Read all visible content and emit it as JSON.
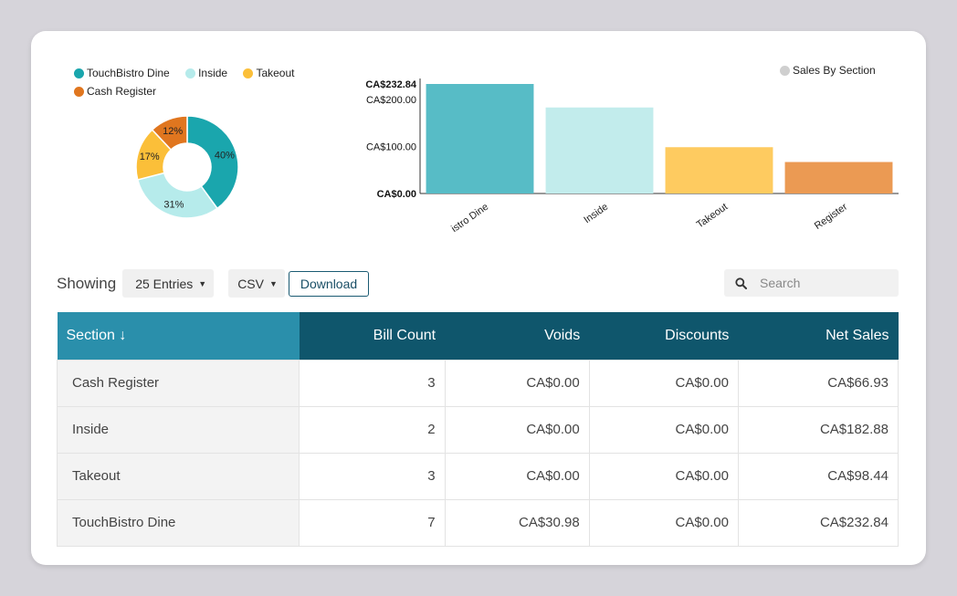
{
  "donut": {
    "legend": [
      {
        "label": "TouchBistro Dine",
        "color": "#1aa6ad"
      },
      {
        "label": "Inside",
        "color": "#b6ebeb"
      },
      {
        "label": "Takeout",
        "color": "#fbbf39"
      },
      {
        "label": "Cash Register",
        "color": "#e0761f"
      }
    ]
  },
  "bar_legend": {
    "label": "Sales By Section",
    "color": "#cfcfcf"
  },
  "chart_data": [
    {
      "type": "pie",
      "labels": [
        "TouchBistro Dine",
        "Inside",
        "Takeout",
        "Cash Register"
      ],
      "values": [
        40,
        31,
        17,
        12
      ],
      "data_labels": [
        "40%",
        "31%",
        "17%",
        "12%"
      ],
      "colors": [
        "#1aa6ad",
        "#b6ebeb",
        "#fbbf39",
        "#e0761f"
      ]
    },
    {
      "type": "bar",
      "categories": [
        "TouchBistro Dine",
        "Inside",
        "Takeout",
        "Cash Register"
      ],
      "tick_labels": [
        "istro Dine",
        "Inside",
        "Takeout",
        "Register"
      ],
      "values": [
        232.84,
        182.88,
        98.44,
        66.93
      ],
      "colors": [
        "#57bcc6",
        "#c2ecec",
        "#fecb60",
        "#eb9a53"
      ],
      "y_ticks": [
        {
          "value": 0,
          "label": "CA$0.00"
        },
        {
          "value": 100,
          "label": "CA$100.00"
        },
        {
          "value": 200,
          "label": "CA$200.00"
        },
        {
          "value": 232.84,
          "label": "CA$232.84"
        }
      ],
      "ylim": [
        0,
        232.84
      ],
      "legend": "Sales By Section",
      "legend_position": "top-right"
    }
  ],
  "controls": {
    "showing": "Showing",
    "entries": "25 Entries",
    "format": "CSV",
    "download": "Download",
    "search_placeholder": "Search"
  },
  "table": {
    "headers": [
      "Section",
      "Bill Count",
      "Voids",
      "Discounts",
      "Net Sales"
    ],
    "sort_arrow": "↓",
    "rows": [
      [
        "Cash Register",
        "3",
        "CA$0.00",
        "CA$0.00",
        "CA$66.93"
      ],
      [
        "Inside",
        "2",
        "CA$0.00",
        "CA$0.00",
        "CA$182.88"
      ],
      [
        "Takeout",
        "3",
        "CA$0.00",
        "CA$0.00",
        "CA$98.44"
      ],
      [
        "TouchBistro Dine",
        "7",
        "CA$30.98",
        "CA$0.00",
        "CA$232.84"
      ]
    ]
  }
}
